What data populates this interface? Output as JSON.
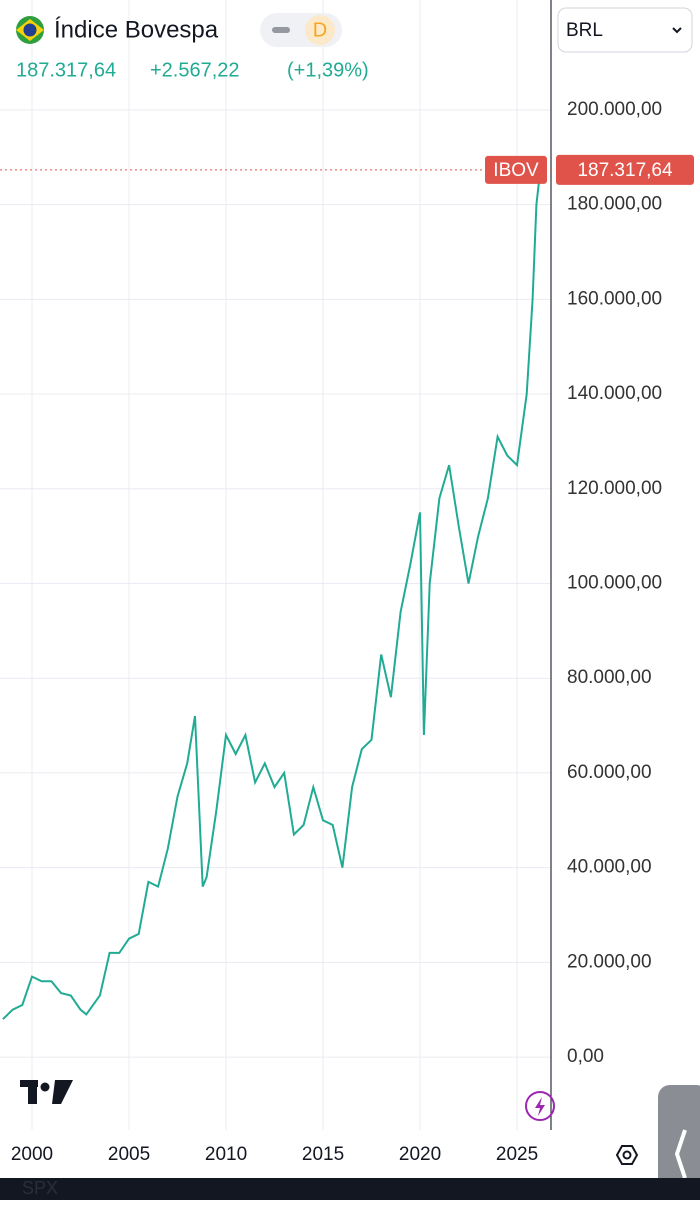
{
  "chart_data": {
    "type": "line",
    "title": "Índice Bovespa",
    "interval": "D",
    "currency": "BRL",
    "footer_symbol": "SPX",
    "last_price": {
      "value": 187317.64,
      "label": "187.317,64"
    },
    "change": "+2.567,22",
    "change_percent": "(+1,39%)",
    "x": [
      1998.5,
      1999.0,
      1999.5,
      2000.0,
      2000.5,
      2001.0,
      2001.5,
      2002.0,
      2002.5,
      2002.8,
      2003.5,
      2004.0,
      2004.5,
      2005.0,
      2005.5,
      2006.0,
      2006.5,
      2007.0,
      2007.5,
      2008.0,
      2008.4,
      2008.8,
      2009.0,
      2009.5,
      2010.0,
      2010.5,
      2011.0,
      2011.5,
      2012.0,
      2012.5,
      2013.0,
      2013.5,
      2014.0,
      2014.5,
      2015.0,
      2015.5,
      2016.0,
      2016.5,
      2017.0,
      2017.5,
      2018.0,
      2018.5,
      2019.0,
      2019.5,
      2020.0,
      2020.2,
      2020.5,
      2021.0,
      2021.5,
      2022.0,
      2022.5,
      2023.0,
      2023.5,
      2024.0,
      2024.5,
      2025.0,
      2025.5,
      2025.8,
      2026.0,
      2026.2
    ],
    "series": [
      {
        "name": "IBOV",
        "color": "#22ab94",
        "values": [
          8000,
          10000,
          11000,
          17000,
          16000,
          16000,
          13500,
          13000,
          10000,
          9000,
          13000,
          22000,
          22000,
          25000,
          26000,
          37000,
          36000,
          44000,
          55000,
          62000,
          72000,
          36000,
          38000,
          52000,
          68000,
          64000,
          68000,
          58000,
          62000,
          57000,
          60000,
          47000,
          49000,
          57000,
          50000,
          49000,
          40000,
          57000,
          65000,
          67000,
          85000,
          76000,
          94000,
          104000,
          115000,
          68000,
          100000,
          118000,
          125000,
          112000,
          100000,
          110000,
          118000,
          131000,
          127000,
          125000,
          140000,
          160000,
          180000,
          187317.64
        ]
      }
    ],
    "xlim": [
      1998.35,
      2026.75
    ],
    "xticks": [
      2000,
      2005,
      2010,
      2015,
      2020,
      2025
    ],
    "ylim": [
      -15400,
      223200
    ],
    "yticks": [
      {
        "value": 0,
        "label": "0,00"
      },
      {
        "value": 20000,
        "label": "20.000,00"
      },
      {
        "value": 40000,
        "label": "40.000,00"
      },
      {
        "value": 60000,
        "label": "60.000,00"
      },
      {
        "value": 80000,
        "label": "80.000,00"
      },
      {
        "value": 100000,
        "label": "100.000,00"
      },
      {
        "value": 120000,
        "label": "120.000,00"
      },
      {
        "value": 140000,
        "label": "140.000,00"
      },
      {
        "value": 160000,
        "label": "160.000,00"
      },
      {
        "value": 180000,
        "label": "180.000,00"
      },
      {
        "value": 200000,
        "label": "200.000,00"
      }
    ],
    "grid": true
  }
}
